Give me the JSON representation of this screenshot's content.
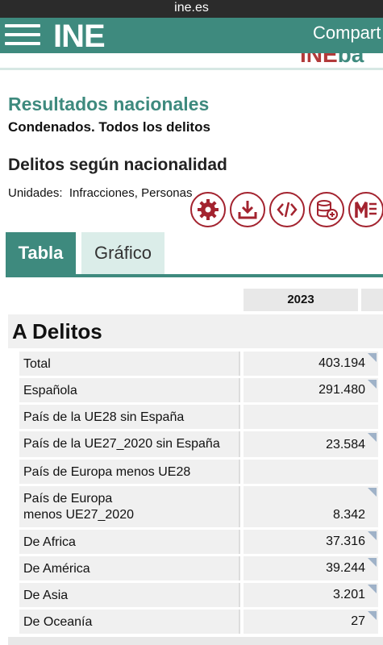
{
  "browser": {
    "url": "ine.es"
  },
  "header": {
    "logo": "INE",
    "share_label": "Compart",
    "sublogo_left": "INE",
    "sublogo_right": "ba"
  },
  "page": {
    "title": "Resultados nacionales",
    "subtitle": "Condenados. Todos los delitos",
    "section_title": "Delitos según nacionalidad",
    "units_label": "Unidades:",
    "units_value": "Infracciones, Personas"
  },
  "toolbar": {
    "icons": [
      "gear-icon",
      "download-icon",
      "code-icon",
      "database-add-icon",
      "menu-m-icon"
    ],
    "accent": "#a3232f"
  },
  "tabs": [
    {
      "label": "Tabla",
      "active": true
    },
    {
      "label": "Gráfico",
      "active": false
    }
  ],
  "table": {
    "year_header": "2023",
    "group": "A Delitos",
    "rows": [
      {
        "label": "Total",
        "value": "403.194"
      },
      {
        "label": "Española",
        "value": "291.480"
      },
      {
        "label": "País de la UE28 sin España",
        "value": ""
      },
      {
        "label": "País de la UE27_2020 sin España",
        "value": "23.584"
      },
      {
        "label": "País de Europa menos UE28",
        "value": ""
      },
      {
        "label": "País de Europa menos UE27_2020",
        "value": "8.342"
      },
      {
        "label": "De Africa",
        "value": "37.316"
      },
      {
        "label": "De América",
        "value": "39.244"
      },
      {
        "label": "De Asia",
        "value": "3.201"
      },
      {
        "label": "De Oceanía",
        "value": "27"
      }
    ]
  },
  "colors": {
    "brand": "#3e8a7e",
    "accent": "#a3232f",
    "tab_inactive": "#dbede9"
  }
}
